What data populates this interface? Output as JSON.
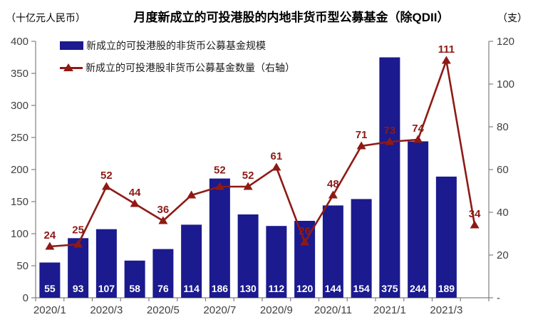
{
  "header": {
    "left_unit": "（十亿元人民币）",
    "title": "月度新成立的可投港股的内地非货币型公募基金（除QDII）",
    "right_unit": "（支）"
  },
  "legend": {
    "position": "top-left",
    "items": [
      {
        "label": "新成立的可投港股的非货币公募基金规模",
        "marker": "bar-swatch",
        "color": "#1b1a8e"
      },
      {
        "label": "新成立的可投港股非货币公募基金数量（右轴）",
        "marker": "line-triangle-swatch",
        "color": "#8e1a15"
      }
    ]
  },
  "chart_data": {
    "type": "bar+line combo",
    "title": "月度新成立的可投港股的内地非货币型公募基金（除QDII）",
    "grid": false,
    "background": "#ffffff",
    "categories": [
      "2020/1",
      "2020/2",
      "2020/3",
      "2020/4",
      "2020/5",
      "2020/6",
      "2020/7",
      "2020/8",
      "2020/9",
      "2020/10",
      "2020/11",
      "2020/12",
      "2021/1",
      "2021/2",
      "2021/3",
      "2021/4"
    ],
    "x_tick_labels": [
      "2020/1",
      "2020/3",
      "2020/5",
      "2020/7",
      "2020/9",
      "2020/11",
      "2021/1",
      "2021/3"
    ],
    "left_axis": {
      "unit": "（十亿元人民币）",
      "min": 0,
      "max": 400,
      "step": 50,
      "tick_labels": [
        "0",
        "50",
        "100",
        "150",
        "200",
        "250",
        "300",
        "350",
        "400"
      ]
    },
    "right_axis": {
      "unit": "（支）",
      "min": 0,
      "max": 120,
      "step": 20,
      "tick_labels": [
        "-",
        "20",
        "40",
        "60",
        "80",
        "100",
        "120"
      ]
    },
    "series": [
      {
        "name": "新成立的可投港股的非货币公募基金规模",
        "type": "bar",
        "axis": "left",
        "color": "#1b1a8e",
        "label_color": "#ffffff",
        "values": [
          55,
          93,
          107,
          58,
          76,
          114,
          186,
          130,
          112,
          120,
          144,
          154,
          375,
          244,
          189,
          null
        ],
        "point_labels": [
          "55",
          "93",
          "107",
          "58",
          "76",
          "114",
          "186",
          "130",
          "112",
          "120",
          "144",
          "154",
          "375",
          "244",
          "189",
          ""
        ]
      },
      {
        "name": "新成立的可投港股非货币公募基金数量（右轴）",
        "type": "line",
        "axis": "right",
        "color": "#8e1a15",
        "marker": "triangle-up",
        "values": [
          24,
          25,
          52,
          44,
          36,
          48,
          52,
          52,
          61,
          26,
          48,
          71,
          73,
          74,
          111,
          34
        ],
        "point_labels": [
          "24",
          "25",
          "52",
          "44",
          "36",
          "",
          "52",
          "52",
          "61",
          "26",
          "48",
          "71",
          "73",
          "74",
          "111",
          "34"
        ]
      }
    ],
    "axis_color": "#808080",
    "tick_text_color": "#404040"
  }
}
